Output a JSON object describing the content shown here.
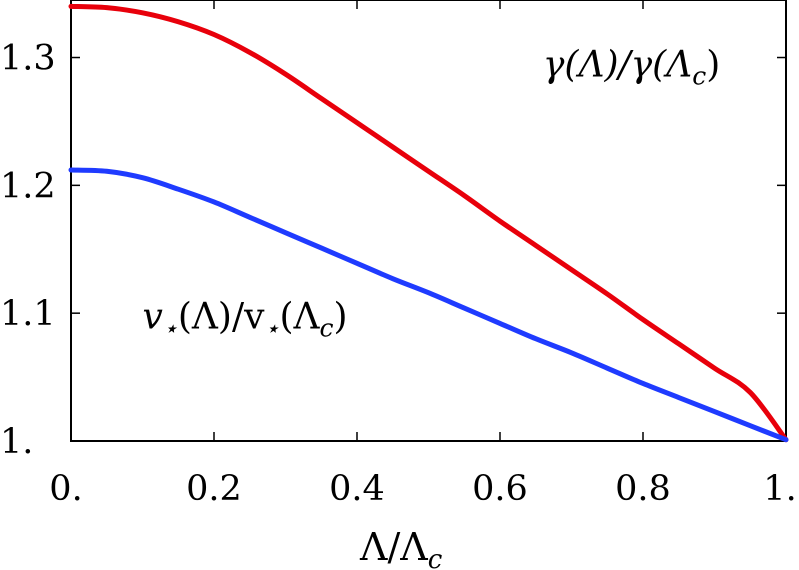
{
  "chart_data": {
    "type": "line",
    "title": "",
    "xlabel": "Λ/Λ",
    "xlabel_sub": "c",
    "ylabel": "",
    "xlim": [
      0,
      1
    ],
    "ylim": [
      1.0,
      1.345
    ],
    "grid": false,
    "legend": "none",
    "x_ticks": [
      {
        "value": 0,
        "label": "0."
      },
      {
        "value": 0.2,
        "label": "0.2"
      },
      {
        "value": 0.4,
        "label": "0.4"
      },
      {
        "value": 0.6,
        "label": "0.6"
      },
      {
        "value": 0.8,
        "label": "0.8"
      },
      {
        "value": 1,
        "label": "1."
      }
    ],
    "y_ticks": [
      {
        "value": 1.0,
        "label": "1."
      },
      {
        "value": 1.1,
        "label": "1.1"
      },
      {
        "value": 1.2,
        "label": "1.2"
      },
      {
        "value": 1.3,
        "label": "1.3"
      }
    ],
    "x": [
      0,
      0.05,
      0.1,
      0.15,
      0.2,
      0.25,
      0.3,
      0.35,
      0.4,
      0.45,
      0.5,
      0.55,
      0.6,
      0.65,
      0.7,
      0.75,
      0.8,
      0.85,
      0.9,
      0.95,
      1.0
    ],
    "series": [
      {
        "name": "γ(Λ)/γ(Λc)",
        "color": "#e8000b",
        "values": [
          1.34,
          1.339,
          1.335,
          1.328,
          1.318,
          1.304,
          1.287,
          1.268,
          1.249,
          1.23,
          1.211,
          1.192,
          1.172,
          1.153,
          1.134,
          1.115,
          1.095,
          1.076,
          1.057,
          1.038,
          1.001
        ]
      },
      {
        "name": "v⋆(Λ)/v⋆(Λc)",
        "color": "#1f3bff",
        "values": [
          1.212,
          1.211,
          1.206,
          1.197,
          1.187,
          1.175,
          1.163,
          1.151,
          1.139,
          1.127,
          1.116,
          1.104,
          1.092,
          1.08,
          1.069,
          1.057,
          1.045,
          1.034,
          1.023,
          1.012,
          1.001
        ]
      }
    ],
    "annotations": [
      {
        "main": "γ(Λ)/γ(Λ",
        "sub": "c",
        "close": ")",
        "x": 0.66,
        "y": 1.285
      },
      {
        "main": "v",
        "star": "⋆",
        "mid": "(Λ)/v",
        "star2": "⋆",
        "tail": "(Λ",
        "sub": "c",
        "close": ")",
        "x": 0.1,
        "y": 1.088
      }
    ]
  }
}
